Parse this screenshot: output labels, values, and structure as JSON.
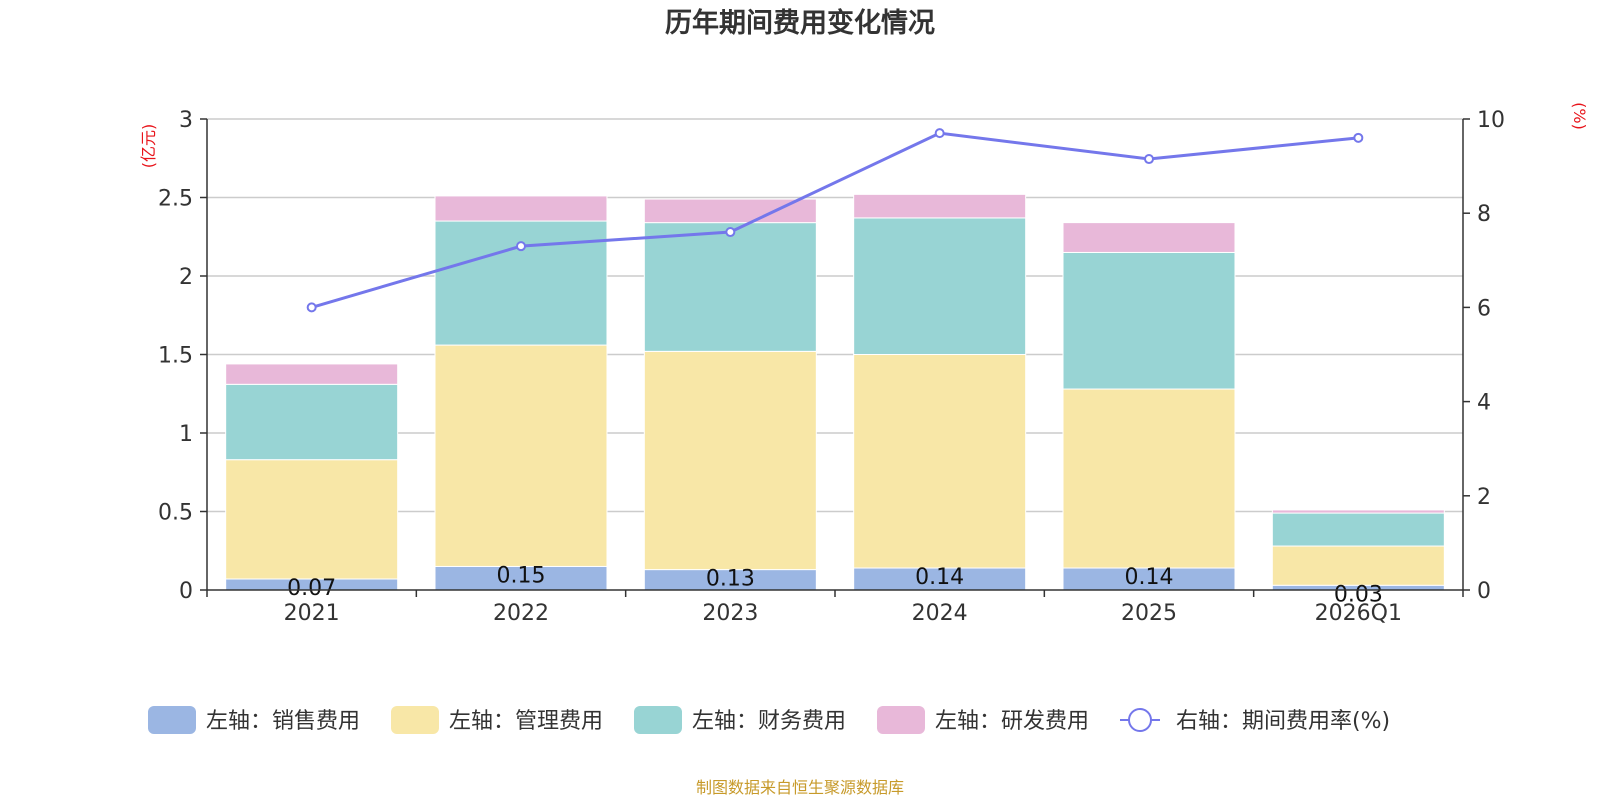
{
  "chart_data": {
    "type": "bar",
    "stacked": true,
    "title": "历年期间费用变化情况",
    "categories": [
      "2021",
      "2022",
      "2023",
      "2024",
      "2025",
      "2026Q1"
    ],
    "left_axis": {
      "unit": "(亿元)",
      "ylim": [
        0,
        3
      ],
      "ticks": [
        0,
        0.5,
        1,
        1.5,
        2,
        2.5,
        3
      ],
      "tick_labels": [
        "0",
        "0.5",
        "1",
        "1.5",
        "2",
        "2.5",
        "3"
      ]
    },
    "right_axis": {
      "unit": "(%)",
      "ylim": [
        0,
        10
      ],
      "ticks": [
        0,
        2,
        4,
        6,
        8,
        10
      ],
      "tick_labels": [
        "0",
        "2",
        "4",
        "6",
        "8",
        "10"
      ]
    },
    "series": [
      {
        "name": "左轴：销售费用",
        "axis": "left",
        "kind": "bar",
        "color": "#9bb6e3",
        "values": [
          0.07,
          0.15,
          0.13,
          0.14,
          0.14,
          0.03
        ],
        "labels": [
          "0.07",
          "0.15",
          "0.13",
          "0.14",
          "0.14",
          "0.03"
        ]
      },
      {
        "name": "左轴：管理费用",
        "axis": "left",
        "kind": "bar",
        "color": "#f8e7a7",
        "values": [
          0.76,
          1.41,
          1.39,
          1.36,
          1.14,
          0.25
        ]
      },
      {
        "name": "左轴：财务费用",
        "axis": "left",
        "kind": "bar",
        "color": "#98d4d4",
        "values": [
          0.48,
          0.79,
          0.82,
          0.87,
          0.87,
          0.21
        ]
      },
      {
        "name": "左轴：研发费用",
        "axis": "left",
        "kind": "bar",
        "color": "#e8b8d9",
        "values": [
          0.13,
          0.16,
          0.15,
          0.15,
          0.19,
          0.02
        ]
      },
      {
        "name": "右轴：期间费用率(%)",
        "axis": "right",
        "kind": "line",
        "color": "#7477eb",
        "values": [
          6.0,
          7.3,
          7.6,
          9.7,
          9.15,
          9.6
        ]
      }
    ],
    "grid": true,
    "legend_position": "bottom"
  },
  "source_note": "制图数据来自恒生聚源数据库"
}
